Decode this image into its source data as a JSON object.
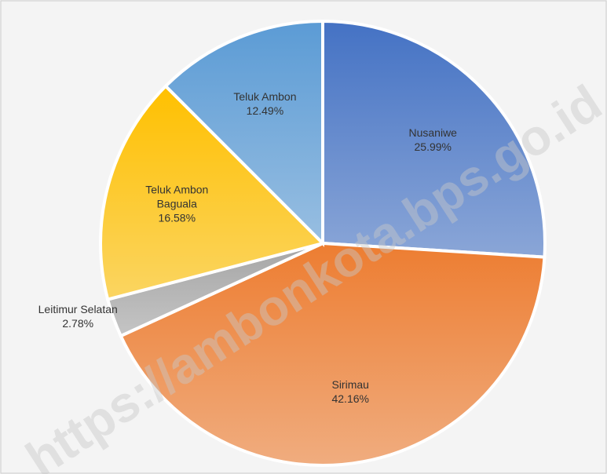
{
  "chart_data": {
    "type": "pie",
    "categories": [
      "Nusaniwe",
      "Sirimau",
      "Leitimur Selatan",
      "Teluk Ambon Baguala",
      "Teluk Ambon"
    ],
    "values": [
      25.99,
      42.16,
      2.78,
      16.58,
      12.49
    ],
    "value_labels": [
      "25.99%",
      "42.16%",
      "2.78%",
      "16.58%",
      "12.49%"
    ],
    "colors": [
      "#4472c4",
      "#ed7d31",
      "#a5a5a5",
      "#ffc000",
      "#5b9bd5"
    ],
    "watermark": "https://ambonkota.bps.go.id"
  }
}
